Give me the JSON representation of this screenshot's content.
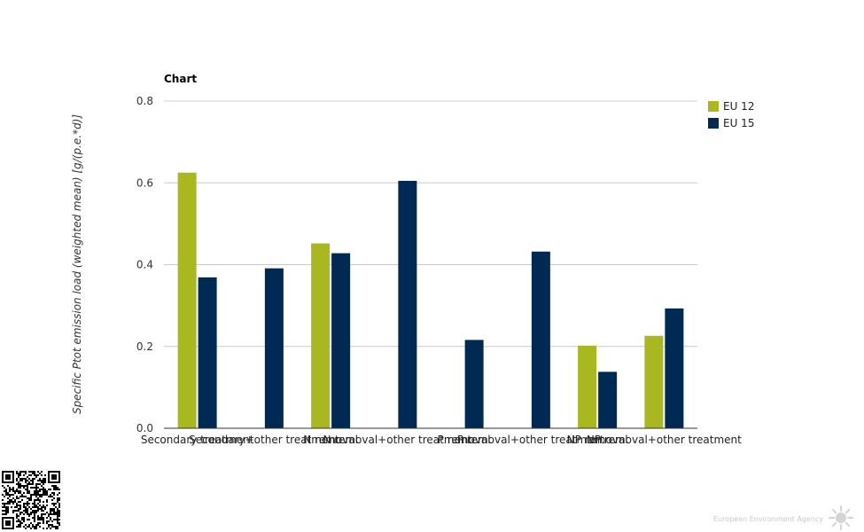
{
  "chart_data": {
    "type": "bar",
    "title": "Chart",
    "ylabel": "Specific Ptot emission load (weighted mean) [g/(p.e.*d)]",
    "xlabel": "",
    "ylim": [
      0,
      0.8
    ],
    "yticks": [
      "0.0",
      "0.2",
      "0.4",
      "0.6",
      "0.8"
    ],
    "grid": true,
    "legend_position": "top-right",
    "categories": [
      "Secondary treatment",
      "Secondary+other treatment",
      "N removal",
      "N removal+other treatment",
      "P removal",
      "P removal+other treatment",
      "NP removal",
      "NP removal+other treatment"
    ],
    "series": [
      {
        "name": "EU 12",
        "color": "#a9b81f",
        "values": [
          0.625,
          null,
          0.452,
          null,
          null,
          null,
          0.202,
          0.226
        ]
      },
      {
        "name": "EU 15",
        "color": "#002953",
        "values": [
          0.369,
          0.391,
          0.428,
          0.605,
          0.216,
          0.432,
          0.138,
          0.293
        ]
      }
    ]
  },
  "footer": {
    "credit": "European Environment Agency",
    "logo_icon": "eea-sun-icon",
    "qr_icon": "qr-code-icon"
  }
}
